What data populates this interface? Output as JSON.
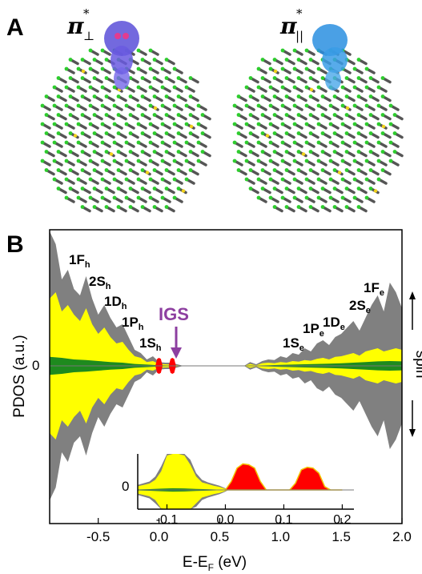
{
  "panel_a": {
    "letter": "A",
    "left_orbital": {
      "symbol": "π",
      "superscript": "*",
      "subscript": "⊥",
      "color": "#5b4fd8"
    },
    "right_orbital": {
      "symbol": "π",
      "superscript": "*",
      "subscript": "||",
      "color": "#2a8fe0"
    }
  },
  "panel_b": {
    "letter": "B",
    "ylabel": "PDOS (a.u.)",
    "xlabel": "E-E",
    "xlabel_sub": "F",
    "xlabel_unit": " (eV)",
    "spin_label": "spin",
    "igs_label": "IGS",
    "igs_color": "#8d3fa0",
    "colors": {
      "total": "#808080",
      "yellow": "#ffff00",
      "green": "#1e8a1e",
      "red": "#ff0000"
    },
    "states": [
      {
        "main": "1F",
        "sub": "h"
      },
      {
        "main": "2S",
        "sub": "h"
      },
      {
        "main": "1D",
        "sub": "h"
      },
      {
        "main": "1P",
        "sub": "h"
      },
      {
        "main": "1S",
        "sub": "h"
      },
      {
        "main": "1S",
        "sub": "e"
      },
      {
        "main": "1P",
        "sub": "e"
      },
      {
        "main": "1D",
        "sub": "e"
      },
      {
        "main": "2S",
        "sub": "e"
      },
      {
        "main": "1F",
        "sub": "e"
      }
    ]
  },
  "chart_data": [
    {
      "type": "area",
      "title": "",
      "xlabel": "E-EF (eV)",
      "ylabel": "PDOS (a.u.)",
      "xlim": [
        -0.9,
        2.0
      ],
      "xticks": [
        "-0.5",
        "0.0",
        "0.5",
        "1.0",
        "1.5",
        "2.0"
      ],
      "yticks": [
        "0"
      ],
      "legend": "none",
      "series": [
        {
          "color": "#808080",
          "x": [
            -0.9,
            -0.85,
            -0.8,
            -0.75,
            -0.7,
            -0.65,
            -0.6,
            -0.55,
            -0.5,
            -0.45,
            -0.4,
            -0.35,
            -0.3,
            -0.25,
            -0.2,
            -0.15,
            -0.1,
            -0.05,
            0.0,
            0.05,
            0.1,
            0.15,
            0.2,
            0.7,
            0.75,
            0.8,
            0.85,
            0.9,
            0.95,
            1.0,
            1.05,
            1.1,
            1.15,
            1.2,
            1.25,
            1.3,
            1.35,
            1.4,
            1.45,
            1.5,
            1.55,
            1.6,
            1.65,
            1.7,
            1.75,
            1.8,
            1.85,
            1.9,
            1.95,
            2.0
          ],
          "y": [
            4.2,
            3.8,
            2.7,
            3.0,
            2.4,
            2.2,
            2.8,
            2.1,
            1.6,
            1.9,
            1.5,
            1.2,
            1.3,
            0.9,
            0.5,
            0.4,
            0.2,
            0.3,
            0.12,
            0.1,
            0.1,
            0.05,
            0.0,
            0.0,
            0.12,
            0.05,
            0.15,
            0.2,
            0.18,
            0.3,
            0.25,
            0.4,
            0.35,
            0.55,
            0.45,
            0.7,
            0.8,
            0.65,
            0.9,
            1.0,
            1.2,
            1.4,
            1.1,
            1.5,
            1.9,
            2.2,
            1.7,
            2.6,
            2.3,
            1.8
          ]
        },
        {
          "color": "#ffff00",
          "x": [
            -0.9,
            -0.85,
            -0.8,
            -0.75,
            -0.7,
            -0.65,
            -0.6,
            -0.55,
            -0.5,
            -0.45,
            -0.4,
            -0.35,
            -0.3,
            -0.25,
            -0.2,
            -0.15,
            -0.1,
            -0.05,
            0.0,
            0.05,
            0.1,
            0.15,
            0.2,
            0.7,
            0.75,
            0.8,
            0.85,
            0.9,
            0.95,
            1.0,
            1.05,
            1.1,
            1.15,
            1.2,
            1.25,
            1.3,
            1.35,
            1.4,
            1.45,
            1.5,
            1.55,
            1.6,
            1.65,
            1.7,
            1.75,
            1.8,
            1.85,
            1.9,
            1.95,
            2.0
          ],
          "y": [
            2.1,
            2.3,
            1.7,
            1.9,
            1.6,
            1.4,
            1.8,
            1.3,
            1.0,
            1.2,
            0.9,
            0.7,
            0.75,
            0.5,
            0.3,
            0.25,
            0.12,
            0.15,
            0.06,
            0.05,
            0.04,
            0.02,
            0.0,
            0.0,
            0.06,
            0.02,
            0.08,
            0.1,
            0.08,
            0.12,
            0.1,
            0.15,
            0.13,
            0.18,
            0.16,
            0.22,
            0.25,
            0.2,
            0.28,
            0.3,
            0.35,
            0.4,
            0.32,
            0.45,
            0.5,
            0.55,
            0.45,
            0.5,
            0.55,
            0.5
          ]
        },
        {
          "color": "#1e8a1e",
          "x": [
            -0.9,
            -0.8,
            -0.7,
            -0.6,
            -0.5,
            -0.4,
            -0.3,
            -0.2,
            -0.1,
            0.0,
            0.1,
            0.2,
            0.7,
            0.8,
            0.9,
            1.0,
            1.1,
            1.2,
            1.3,
            1.4,
            1.5,
            1.6,
            1.7,
            1.8,
            1.9,
            2.0
          ],
          "y": [
            0.28,
            0.25,
            0.2,
            0.18,
            0.15,
            0.12,
            0.1,
            0.06,
            0.04,
            0.02,
            0.01,
            0.0,
            0.0,
            0.01,
            0.02,
            0.03,
            0.04,
            0.05,
            0.06,
            0.07,
            0.08,
            0.1,
            0.12,
            0.14,
            0.15,
            0.14
          ]
        },
        {
          "color": "#ff0000",
          "x": [
            -0.03,
            -0.015,
            0.0,
            0.015,
            0.03,
            0.06,
            0.08,
            0.095,
            0.11,
            0.125,
            0.14,
            0.16
          ],
          "y": [
            0.0,
            0.22,
            0.25,
            0.22,
            0.0,
            0.0,
            0.0,
            0.22,
            0.25,
            0.22,
            0.0,
            0.0
          ]
        }
      ]
    },
    {
      "type": "area",
      "title": "",
      "xlim": [
        -0.15,
        0.22
      ],
      "xticks": [
        "-0.1",
        "0.0",
        "0.1",
        "0.2"
      ],
      "yticks": [
        "0"
      ],
      "legend": "none",
      "series": [
        {
          "color": "#808080",
          "x": [
            -0.15,
            -0.14,
            -0.13,
            -0.12,
            -0.11,
            -0.1,
            -0.09,
            -0.08,
            -0.07,
            -0.06,
            -0.05,
            -0.04,
            -0.03,
            -0.02,
            -0.01,
            0.0,
            0.005
          ],
          "y": [
            0.3,
            0.4,
            0.5,
            0.8,
            1.4,
            2.4,
            2.5,
            2.5,
            2.4,
            1.8,
            1.0,
            0.6,
            0.45,
            0.35,
            0.25,
            0.1,
            0.0
          ]
        },
        {
          "color": "#ffff00",
          "x": [
            -0.15,
            -0.14,
            -0.13,
            -0.12,
            -0.11,
            -0.1,
            -0.09,
            -0.08,
            -0.07,
            -0.06,
            -0.05,
            -0.04,
            -0.03,
            -0.02,
            -0.01,
            0.0,
            0.005
          ],
          "y": [
            0.22,
            0.3,
            0.38,
            0.6,
            1.1,
            2.05,
            2.2,
            2.2,
            2.05,
            1.5,
            0.8,
            0.45,
            0.35,
            0.25,
            0.18,
            0.06,
            0.0
          ]
        },
        {
          "color": "#1e8a1e",
          "x": [
            -0.15,
            -0.13,
            -0.11,
            -0.09,
            -0.07,
            -0.05,
            -0.03,
            -0.01,
            0.0,
            0.005
          ],
          "y": [
            0.03,
            0.05,
            0.08,
            0.1,
            0.09,
            0.06,
            0.04,
            0.02,
            0.01,
            0.0
          ]
        },
        {
          "color": "#ff0000",
          "x": [
            0.0,
            0.01,
            0.02,
            0.03,
            0.04,
            0.05,
            0.06,
            0.07,
            0.08,
            0.09,
            0.1,
            0.11,
            0.12,
            0.13,
            0.14,
            0.15,
            0.16,
            0.17,
            0.18,
            0.19,
            0.2
          ],
          "y": [
            0.0,
            0.5,
            1.3,
            1.55,
            1.5,
            1.3,
            0.5,
            0.0,
            0.0,
            0.0,
            0.0,
            0.0,
            0.4,
            1.2,
            1.35,
            1.3,
            1.0,
            0.2,
            0.0,
            0.0,
            0.0
          ]
        }
      ]
    }
  ]
}
